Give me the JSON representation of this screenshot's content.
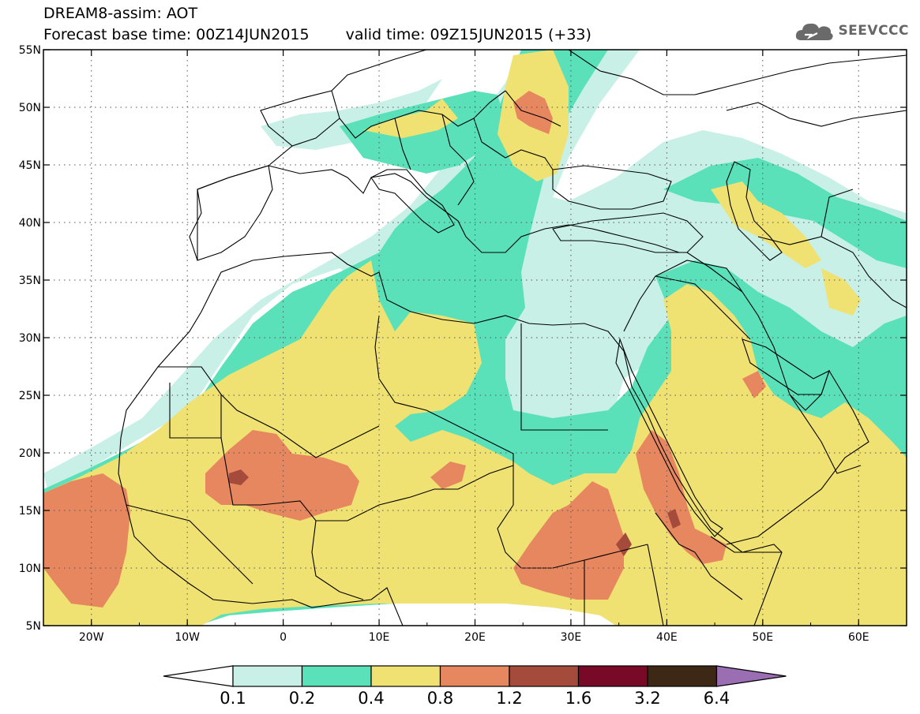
{
  "title": {
    "line1": "DREAM8-assim: AOT",
    "base_time": "Forecast base time: 00Z14JUN2015",
    "valid_time": "valid time: 09Z15JUN2015 (+33)"
  },
  "logo": {
    "text": "SEEVCCC",
    "icon": "cloud-icon"
  },
  "axes": {
    "lon_range": [
      -25,
      65
    ],
    "lat_range": [
      5,
      55
    ],
    "lon_ticks": [
      {
        "value": -20,
        "label": "20W"
      },
      {
        "value": -10,
        "label": "10W"
      },
      {
        "value": 0,
        "label": "0"
      },
      {
        "value": 10,
        "label": "10E"
      },
      {
        "value": 20,
        "label": "20E"
      },
      {
        "value": 30,
        "label": "30E"
      },
      {
        "value": 40,
        "label": "40E"
      },
      {
        "value": 50,
        "label": "50E"
      },
      {
        "value": 60,
        "label": "60E"
      }
    ],
    "lat_ticks": [
      {
        "value": 5,
        "label": "5N"
      },
      {
        "value": 10,
        "label": "10N"
      },
      {
        "value": 15,
        "label": "15N"
      },
      {
        "value": 20,
        "label": "20N"
      },
      {
        "value": 25,
        "label": "25N"
      },
      {
        "value": 30,
        "label": "30N"
      },
      {
        "value": 35,
        "label": "35N"
      },
      {
        "value": 40,
        "label": "40N"
      },
      {
        "value": 45,
        "label": "45N"
      },
      {
        "value": 50,
        "label": "50N"
      },
      {
        "value": 55,
        "label": "55N"
      }
    ],
    "grid": "dotted"
  },
  "colorbar": {
    "labels": [
      "0.1",
      "0.2",
      "0.4",
      "0.8",
      "1.2",
      "1.6",
      "3.2",
      "6.4"
    ],
    "colors": [
      "#ffffff",
      "#c8f0e6",
      "#5ae1b9",
      "#f0e173",
      "#e6875f",
      "#a54b3c",
      "#780a28",
      "#3c2814",
      "#9b6eb4"
    ]
  },
  "levels": {
    "c1": "#c8f0e6",
    "c2": "#5ae1b9",
    "c3": "#f0e173",
    "c4": "#e6875f",
    "c5": "#a54b3c"
  }
}
